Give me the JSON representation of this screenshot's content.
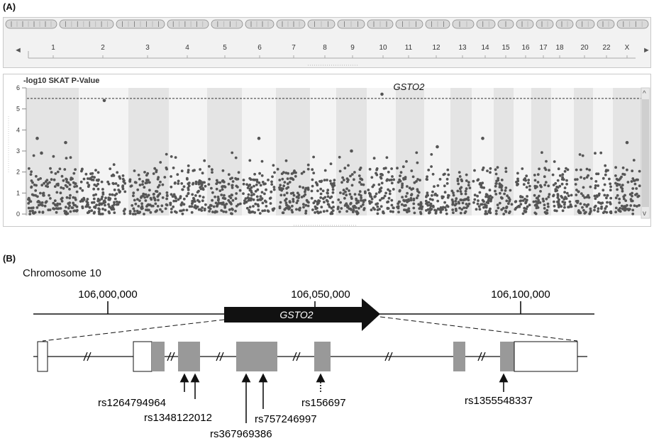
{
  "panel_a": {
    "label": "(A)",
    "chromosomes": [
      "1",
      "2",
      "3",
      "4",
      "5",
      "6",
      "7",
      "8",
      "9",
      "10",
      "11",
      "12",
      "13",
      "14",
      "15",
      "16",
      "17",
      "18",
      "20",
      "22",
      "X"
    ],
    "scroll_left": "◄",
    "scroll_right": "►",
    "plot_title": "-log10 SKAT P-Value",
    "scroll_up": "^",
    "scroll_down": "v",
    "y_ticks": [
      "0",
      "1",
      "2",
      "3",
      "4",
      "5",
      "6"
    ],
    "annotation": "GSTO2",
    "threshold_line": 5.5
  },
  "chart_data": {
    "type": "scatter",
    "title": "",
    "ylabel": "-log10 SKAT P-Value",
    "ylim": [
      0,
      6
    ],
    "threshold": 5.5,
    "categories": [
      "1",
      "2",
      "3",
      "4",
      "5",
      "6",
      "7",
      "8",
      "9",
      "10",
      "11",
      "12",
      "13",
      "14",
      "15",
      "16",
      "17",
      "18",
      "20",
      "22",
      "X"
    ],
    "notable_points": [
      {
        "chromosome": "1",
        "value": 3.6
      },
      {
        "chromosome": "1",
        "value": 2.9
      },
      {
        "chromosome": "1",
        "value": 3.4
      },
      {
        "chromosome": "2",
        "value": 5.4
      },
      {
        "chromosome": "6",
        "value": 3.6
      },
      {
        "chromosome": "9",
        "value": 3.0
      },
      {
        "chromosome": "10",
        "value": 5.7,
        "label": "GSTO2"
      },
      {
        "chromosome": "12",
        "value": 3.2
      },
      {
        "chromosome": "14",
        "value": 3.6
      },
      {
        "chromosome": "X",
        "value": 3.4
      }
    ],
    "grid": false
  },
  "panel_b": {
    "label": "(B)",
    "chromosome_label": "Chromosome 10",
    "positions": [
      "106,000,000",
      "106,050,000",
      "106,100,000"
    ],
    "gene_name": "GSTO2",
    "snps": [
      "rs1264794964",
      "rs1348122012",
      "rs367969386",
      "rs757246997",
      "rs156697",
      "rs1355548337"
    ]
  },
  "colors": {
    "dot": "#555555",
    "exon": "#999999",
    "band_dark": "#e4e4e4",
    "band_light": "#f4f4f4",
    "gene_arrow": "#111111"
  }
}
